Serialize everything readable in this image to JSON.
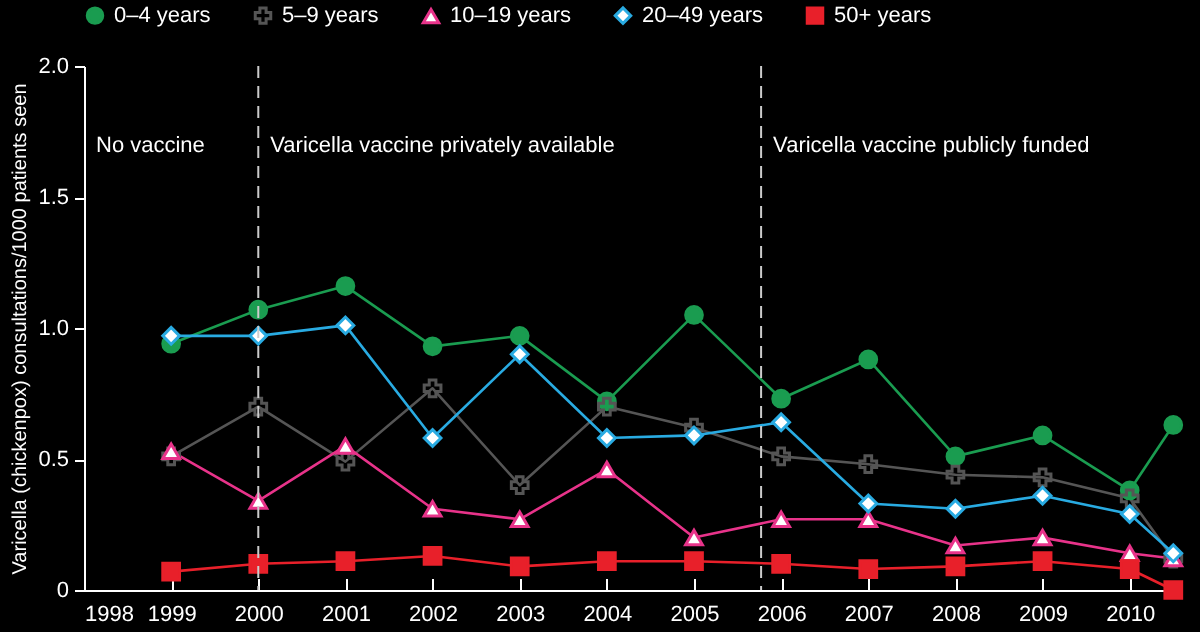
{
  "chart_data": {
    "type": "line",
    "ylabel": "Varicella (chickenpox) consultations/1000 patients seen",
    "x": [
      1999,
      2000,
      2001,
      2002,
      2003,
      2004,
      2005,
      2006,
      2007,
      2008,
      2009,
      2010,
      2010.5
    ],
    "series": [
      {
        "name": "0–4 years",
        "color": "#1a9c50",
        "marker": "circle",
        "values": [
          0.94,
          1.07,
          1.16,
          0.93,
          0.97,
          0.72,
          1.05,
          0.73,
          0.88,
          0.51,
          0.59,
          0.38,
          0.63
        ]
      },
      {
        "name": "5–9 years",
        "color": "#555555",
        "marker": "cross",
        "values": [
          0.51,
          0.7,
          0.49,
          0.77,
          0.4,
          0.7,
          0.62,
          0.51,
          0.48,
          0.44,
          0.43,
          0.35,
          0.12
        ]
      },
      {
        "name": "10–19 years",
        "color": "#e8338a",
        "marker": "triangle",
        "values": [
          0.53,
          0.34,
          0.55,
          0.31,
          0.27,
          0.46,
          0.2,
          0.27,
          0.27,
          0.17,
          0.2,
          0.14,
          0.12
        ]
      },
      {
        "name": "20–49 years",
        "color": "#29abe2",
        "marker": "diamond",
        "values": [
          0.97,
          0.97,
          1.01,
          0.58,
          0.9,
          0.58,
          0.59,
          0.64,
          0.33,
          0.31,
          0.36,
          0.29,
          0.14
        ]
      },
      {
        "name": "50+ years",
        "color": "#e8202a",
        "marker": "square",
        "values": [
          0.07,
          0.1,
          0.11,
          0.13,
          0.09,
          0.11,
          0.11,
          0.1,
          0.08,
          0.09,
          0.11,
          0.08,
          0.0
        ]
      }
    ],
    "xlim": [
      1998,
      2010.6
    ],
    "xticks": [
      1998,
      1999,
      2000,
      2001,
      2002,
      2003,
      2004,
      2005,
      2006,
      2007,
      2008,
      2009,
      2010
    ],
    "ylim": [
      0,
      2.0
    ],
    "yticks": [
      0,
      0.5,
      {
        "value": 1,
        "label": "1.0"
      },
      1.5,
      {
        "value": 2,
        "label": "2.0"
      }
    ],
    "ref_lines": [
      {
        "axis": "x",
        "value": 2000,
        "line_style": "dashed",
        "color": "#cccccc"
      },
      {
        "axis": "x",
        "value": 2005.77,
        "line_style": "dashed",
        "color": "#cccccc"
      }
    ],
    "annotations": [
      "No vaccine",
      "Varicella vaccine privately available",
      "Varicella vaccine publicly funded"
    ],
    "legend": "top",
    "grid": false
  }
}
